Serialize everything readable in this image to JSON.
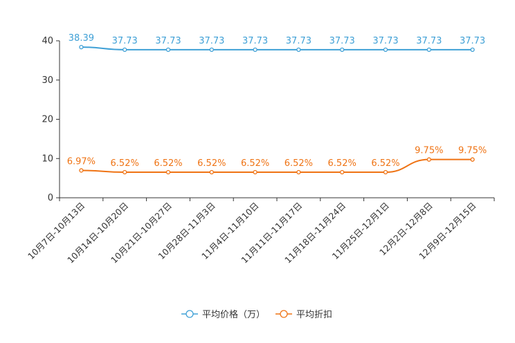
{
  "chart_data": {
    "type": "line",
    "title": "",
    "xlabel": "",
    "ylabel": "",
    "ylim": [
      0,
      40
    ],
    "yticks": [
      0,
      10,
      20,
      30,
      40
    ],
    "grid": false,
    "legend_position": "bottom-center",
    "categories": [
      "10月7日-10月13日",
      "10月14日-10月20日",
      "10月21日-10月27日",
      "10月28日-11月3日",
      "11月4日-11月10日",
      "11月11日-11月17日",
      "11月18日-11月24日",
      "11月25日-12月1日",
      "12月2日-12月8日",
      "12月9日-12月15日"
    ],
    "series": [
      {
        "name": "平均价格（万）",
        "color": "#3fa0d6",
        "values": [
          38.39,
          37.73,
          37.73,
          37.73,
          37.73,
          37.73,
          37.73,
          37.73,
          37.73,
          37.73
        ],
        "labels": [
          "38.39",
          "37.73",
          "37.73",
          "37.73",
          "37.73",
          "37.73",
          "37.73",
          "37.73",
          "37.73",
          "37.73"
        ]
      },
      {
        "name": "平均折扣",
        "color": "#ef7314",
        "values": [
          6.97,
          6.52,
          6.52,
          6.52,
          6.52,
          6.52,
          6.52,
          6.52,
          9.75,
          9.75
        ],
        "labels": [
          "6.97%",
          "6.52%",
          "6.52%",
          "6.52%",
          "6.52%",
          "6.52%",
          "6.52%",
          "6.52%",
          "9.75%",
          "9.75%"
        ]
      }
    ]
  }
}
